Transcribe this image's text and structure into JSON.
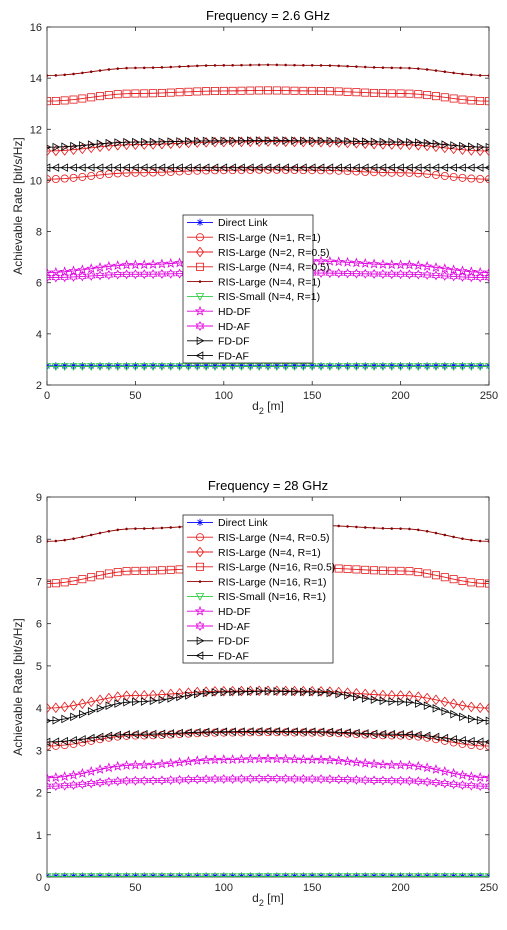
{
  "colors": {
    "blue": "#0000ff",
    "red": "#e41a1c",
    "darkred": "#8b0000",
    "green": "#2ecc40",
    "magenta": "#e000e0",
    "black": "#000000",
    "cyan": "#00b0c0"
  },
  "chart_data": [
    {
      "type": "line",
      "title": "Frequency = 2.6 GHz",
      "xlabel_main": "d",
      "xlabel_sub": "2",
      "xlabel_unit": " [m]",
      "ylabel": "Achievable Rate [bit/s/Hz]",
      "xlim": [
        0,
        250
      ],
      "ylim": [
        2,
        16
      ],
      "xticks": [
        0,
        50,
        100,
        150,
        200,
        250
      ],
      "yticks": [
        2,
        4,
        6,
        8,
        10,
        12,
        14,
        16
      ],
      "grid": false,
      "legend_position": "center",
      "x": [
        0,
        50,
        100,
        125,
        150,
        200,
        250
      ],
      "series": [
        {
          "name": "Direct Link",
          "color": "#0000ff",
          "marker": "asterisk",
          "values": [
            2.75,
            2.75,
            2.75,
            2.75,
            2.75,
            2.75,
            2.75
          ]
        },
        {
          "name": "RIS-Large (N=1, R=1)",
          "color": "#e41a1c",
          "marker": "circle",
          "values": [
            10.05,
            10.3,
            10.4,
            10.42,
            10.4,
            10.3,
            10.05
          ]
        },
        {
          "name": "RIS-Large (N=2, R=0.5)",
          "color": "#e41a1c",
          "marker": "diamond",
          "values": [
            11.15,
            11.4,
            11.5,
            11.52,
            11.5,
            11.4,
            11.15
          ]
        },
        {
          "name": "RIS-Large (N=4, R=0.5)",
          "color": "#e41a1c",
          "marker": "square",
          "values": [
            13.1,
            13.4,
            13.5,
            13.52,
            13.5,
            13.4,
            13.1
          ]
        },
        {
          "name": "RIS-Large (N=4, R=1)",
          "color": "#8b0000",
          "marker": "dot",
          "values": [
            14.1,
            14.4,
            14.5,
            14.52,
            14.5,
            14.4,
            14.1
          ]
        },
        {
          "name": "RIS-Small (N=4, R=1)",
          "color": "#2ecc40",
          "marker": "triangle-down",
          "values": [
            2.72,
            2.72,
            2.72,
            2.72,
            2.72,
            2.72,
            2.72
          ]
        },
        {
          "name": "HD-DF",
          "color": "#e000e0",
          "marker": "star",
          "values": [
            6.4,
            6.7,
            6.85,
            6.88,
            6.85,
            6.7,
            6.4
          ]
        },
        {
          "name": "HD-AF",
          "color": "#e000e0",
          "marker": "hexagram",
          "values": [
            6.2,
            6.33,
            6.38,
            6.39,
            6.38,
            6.33,
            6.2
          ]
        },
        {
          "name": "FD-DF",
          "color": "#000000",
          "marker": "triangle-right",
          "values": [
            11.3,
            11.5,
            11.55,
            11.56,
            11.55,
            11.5,
            11.3
          ]
        },
        {
          "name": "FD-AF",
          "color": "#000000",
          "marker": "triangle-left",
          "values": [
            10.5,
            10.5,
            10.5,
            10.5,
            10.5,
            10.5,
            10.5
          ]
        }
      ]
    },
    {
      "type": "line",
      "title": "Frequency = 28 GHz",
      "xlabel_main": "d",
      "xlabel_sub": "2",
      "xlabel_unit": " [m]",
      "ylabel": "Achievable Rate [bit/s/Hz]",
      "xlim": [
        0,
        250
      ],
      "ylim": [
        0,
        9
      ],
      "xticks": [
        0,
        50,
        100,
        150,
        200,
        250
      ],
      "yticks": [
        0,
        1,
        2,
        3,
        4,
        5,
        6,
        7,
        8,
        9
      ],
      "grid": false,
      "legend_position": "top-center",
      "x": [
        0,
        50,
        100,
        125,
        150,
        200,
        250
      ],
      "series": [
        {
          "name": "Direct Link",
          "color": "#0000ff",
          "marker": "asterisk",
          "values": [
            0.02,
            0.02,
            0.02,
            0.02,
            0.02,
            0.02,
            0.02
          ]
        },
        {
          "name": "RIS-Large (N=4, R=0.5)",
          "color": "#e41a1c",
          "marker": "circle",
          "values": [
            3.1,
            3.35,
            3.42,
            3.43,
            3.42,
            3.35,
            3.1
          ]
        },
        {
          "name": "RIS-Large (N=4, R=1)",
          "color": "#e41a1c",
          "marker": "diamond",
          "values": [
            4.0,
            4.3,
            4.4,
            4.41,
            4.4,
            4.3,
            4.0
          ]
        },
        {
          "name": "RIS-Large (N=16, R=0.5)",
          "color": "#e41a1c",
          "marker": "square",
          "values": [
            6.95,
            7.25,
            7.32,
            7.33,
            7.32,
            7.25,
            6.95
          ]
        },
        {
          "name": "RIS-Large (N=16, R=1)",
          "color": "#8b0000",
          "marker": "dot",
          "values": [
            7.95,
            8.25,
            8.33,
            8.34,
            8.33,
            8.25,
            7.95
          ]
        },
        {
          "name": "RIS-Small (N=16, R=1)",
          "color": "#2ecc40",
          "marker": "triangle-down",
          "values": [
            0.01,
            0.01,
            0.01,
            0.01,
            0.01,
            0.01,
            0.01
          ]
        },
        {
          "name": "HD-DF",
          "color": "#e000e0",
          "marker": "star",
          "values": [
            2.35,
            2.65,
            2.78,
            2.8,
            2.78,
            2.65,
            2.35
          ]
        },
        {
          "name": "HD-AF",
          "color": "#e000e0",
          "marker": "hexagram",
          "values": [
            2.15,
            2.28,
            2.32,
            2.33,
            2.32,
            2.28,
            2.15
          ]
        },
        {
          "name": "FD-DF",
          "color": "#000000",
          "marker": "triangle-right",
          "values": [
            3.7,
            4.15,
            4.38,
            4.4,
            4.38,
            4.15,
            3.7
          ]
        },
        {
          "name": "FD-AF",
          "color": "#000000",
          "marker": "triangle-left",
          "values": [
            3.2,
            3.38,
            3.44,
            3.45,
            3.44,
            3.38,
            3.2
          ]
        }
      ]
    }
  ]
}
